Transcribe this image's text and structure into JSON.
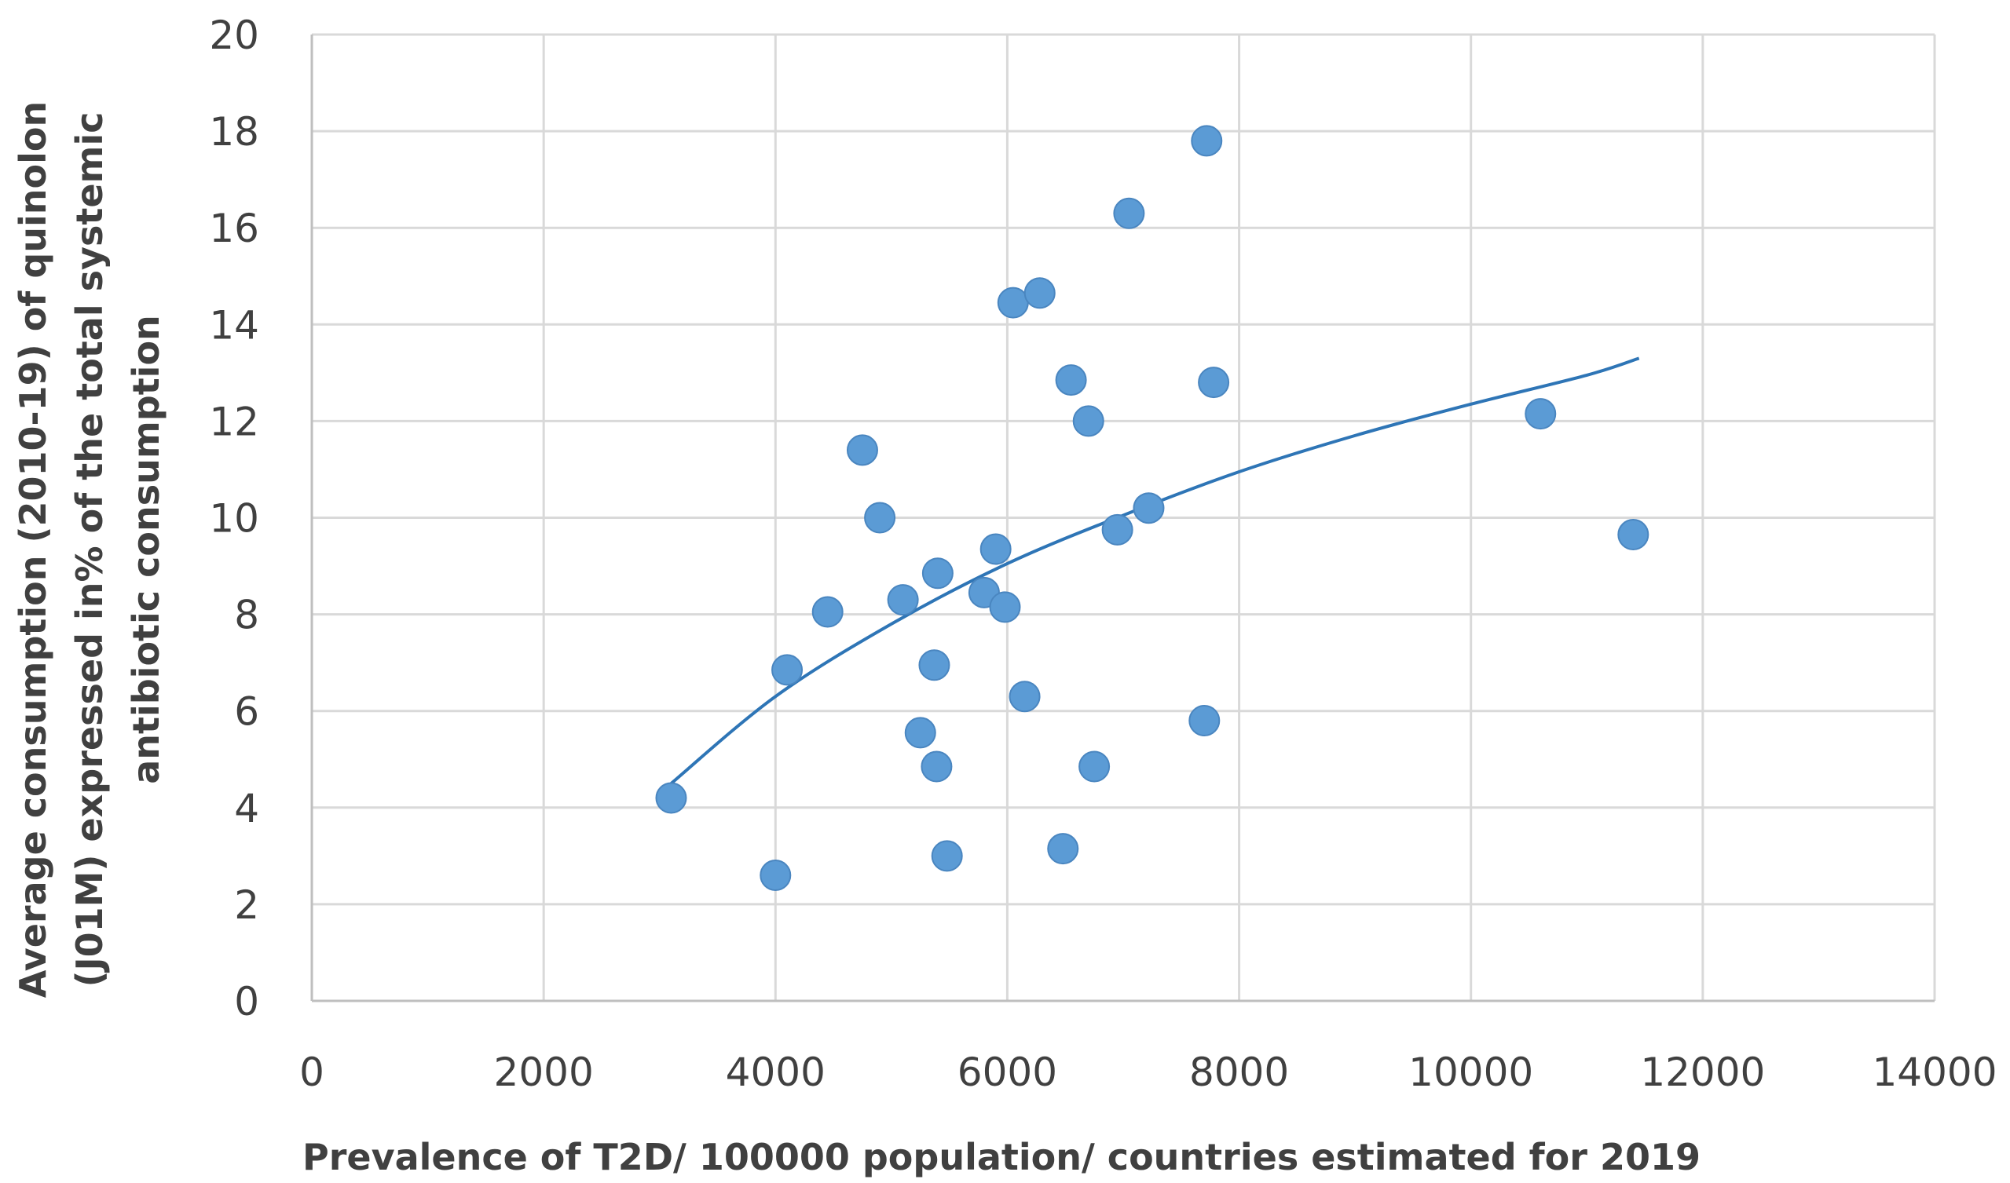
{
  "chart_data": {
    "type": "scatter",
    "title": "",
    "xlabel": "Prevalence of T2D/ 100000 population/ countries estimated for 2019",
    "ylabel_lines": [
      "Average consumption (2010-19) of quinolon",
      "(J01M) expressed in% of the total systemic",
      "antibiotic consumption"
    ],
    "xlim": [
      0,
      14000
    ],
    "ylim": [
      0,
      20
    ],
    "x_ticks": [
      0,
      2000,
      4000,
      6000,
      8000,
      10000,
      12000,
      14000
    ],
    "y_ticks": [
      0,
      2,
      4,
      6,
      8,
      10,
      12,
      14,
      16,
      18,
      20
    ],
    "grid": true,
    "legend": "none",
    "colors": {
      "points": "#5b9bd5",
      "trendline": "#2e75b6",
      "grid": "#d9d9d9",
      "axis": "#bfbfbf",
      "text": "#404040"
    },
    "series": [
      {
        "points": [
          {
            "x": 3100,
            "y": 4.2
          },
          {
            "x": 4000,
            "y": 2.6
          },
          {
            "x": 4100,
            "y": 6.85
          },
          {
            "x": 4450,
            "y": 8.05
          },
          {
            "x": 4750,
            "y": 11.4
          },
          {
            "x": 4900,
            "y": 10.0
          },
          {
            "x": 5100,
            "y": 8.3
          },
          {
            "x": 5250,
            "y": 5.55
          },
          {
            "x": 5370,
            "y": 6.95
          },
          {
            "x": 5390,
            "y": 4.85
          },
          {
            "x": 5400,
            "y": 8.85
          },
          {
            "x": 5480,
            "y": 3.0
          },
          {
            "x": 5800,
            "y": 8.45
          },
          {
            "x": 5900,
            "y": 9.35
          },
          {
            "x": 5980,
            "y": 8.15
          },
          {
            "x": 6050,
            "y": 14.45
          },
          {
            "x": 6150,
            "y": 6.3
          },
          {
            "x": 6280,
            "y": 14.65
          },
          {
            "x": 6480,
            "y": 3.15
          },
          {
            "x": 6550,
            "y": 12.85
          },
          {
            "x": 6700,
            "y": 12.0
          },
          {
            "x": 6750,
            "y": 4.85
          },
          {
            "x": 6950,
            "y": 9.75
          },
          {
            "x": 7050,
            "y": 16.3
          },
          {
            "x": 7220,
            "y": 10.2
          },
          {
            "x": 7700,
            "y": 5.8
          },
          {
            "x": 7720,
            "y": 17.8
          },
          {
            "x": 7780,
            "y": 12.8
          },
          {
            "x": 10600,
            "y": 12.15
          },
          {
            "x": 11400,
            "y": 9.65
          }
        ]
      }
    ],
    "trendline": {
      "type": "logarithmic",
      "points": [
        {
          "x": 3100,
          "y": 4.5
        },
        {
          "x": 4000,
          "y": 6.3
        },
        {
          "x": 5000,
          "y": 7.8
        },
        {
          "x": 6000,
          "y": 9.05
        },
        {
          "x": 7000,
          "y": 10.05
        },
        {
          "x": 8000,
          "y": 10.95
        },
        {
          "x": 9000,
          "y": 11.7
        },
        {
          "x": 10000,
          "y": 12.35
        },
        {
          "x": 11000,
          "y": 12.95
        },
        {
          "x": 11450,
          "y": 13.3
        }
      ]
    }
  }
}
